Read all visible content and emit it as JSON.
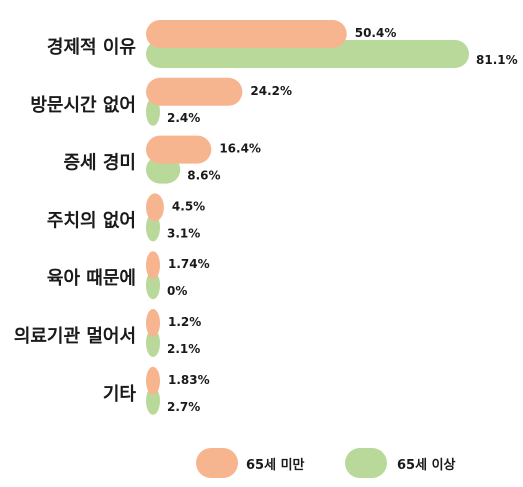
{
  "chart_data": {
    "type": "bar",
    "orientation": "horizontal",
    "categories": [
      "경제적 이유",
      "방문시간 없어",
      "증세 경미",
      "주치의 없어",
      "육아 때문에",
      "의료기관 멀어서",
      "기타"
    ],
    "series": [
      {
        "name": "65세 미만",
        "color": "#f7b58f",
        "values": [
          50.4,
          24.2,
          16.4,
          4.5,
          1.74,
          1.2,
          1.83
        ],
        "labels": [
          "50.4%",
          "24.2%",
          "16.4%",
          "4.5%",
          "1.74%",
          "1.2%",
          "1.83%"
        ]
      },
      {
        "name": "65세 이상",
        "color": "#b9d99a",
        "values": [
          81.1,
          2.4,
          8.6,
          3.1,
          0,
          2.1,
          2.7
        ],
        "labels": [
          "81.1%",
          "2.4%",
          "8.6%",
          "3.1%",
          "0%",
          "2.1%",
          "2.7%"
        ]
      }
    ],
    "xlim": [
      0,
      100
    ],
    "grid": false,
    "legend": "bottom-right"
  }
}
